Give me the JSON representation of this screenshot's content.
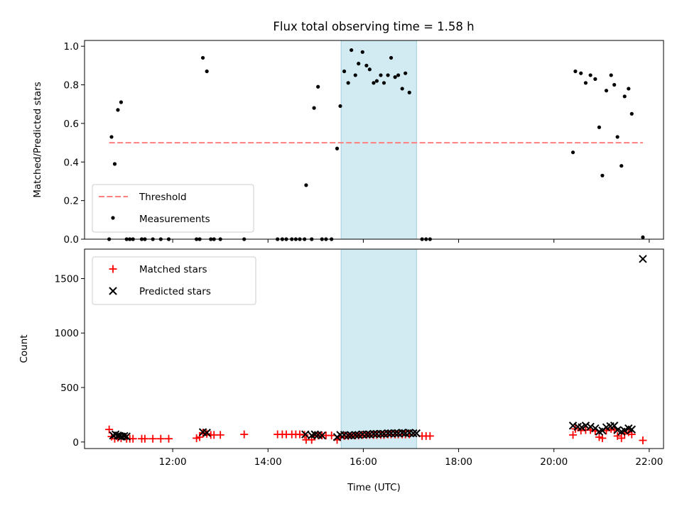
{
  "figure": {
    "title": "Flux total observing time = 1.58 h",
    "shade_color": "#add8e6"
  },
  "chart_data": [
    {
      "type": "scatter",
      "ylabel": "Matched/Predicted stars",
      "xlabel": "",
      "xlim": [
        "10:09",
        "22:18"
      ],
      "ylim": [
        0,
        1.03
      ],
      "yticks": [
        0.0,
        0.2,
        0.4,
        0.6,
        0.8,
        1.0
      ],
      "ytick_labels": [
        "0.0",
        "0.2",
        "0.4",
        "0.6",
        "0.8",
        "1.0"
      ],
      "shaded_interval": [
        "15:32",
        "17:07"
      ],
      "legend": {
        "placement": "lower left",
        "entries": [
          "Threshold",
          "Measurements"
        ]
      },
      "threshold": {
        "name": "Threshold",
        "value": 0.5,
        "x_range": [
          "10:40",
          "21:52"
        ],
        "color": "#ff7f7f",
        "style": "dashed"
      },
      "series": [
        {
          "name": "Measurements",
          "color": "#000000",
          "marker": "dot",
          "points": [
            [
              "10:40",
              0.0
            ],
            [
              "10:43",
              0.53
            ],
            [
              "10:47",
              0.39
            ],
            [
              "10:51",
              0.67
            ],
            [
              "10:55",
              0.71
            ],
            [
              "11:02",
              0.0
            ],
            [
              "11:06",
              0.0
            ],
            [
              "11:10",
              0.0
            ],
            [
              "11:21",
              0.0
            ],
            [
              "11:25",
              0.0
            ],
            [
              "11:35",
              0.0
            ],
            [
              "11:45",
              0.0
            ],
            [
              "11:55",
              0.0
            ],
            [
              "12:30",
              0.0
            ],
            [
              "12:34",
              0.0
            ],
            [
              "12:38",
              0.94
            ],
            [
              "12:43",
              0.87
            ],
            [
              "12:48",
              0.0
            ],
            [
              "12:52",
              0.0
            ],
            [
              "13:00",
              0.0
            ],
            [
              "13:30",
              0.0
            ],
            [
              "14:12",
              0.0
            ],
            [
              "14:18",
              0.0
            ],
            [
              "14:23",
              0.0
            ],
            [
              "14:30",
              0.0
            ],
            [
              "14:35",
              0.0
            ],
            [
              "14:40",
              0.0
            ],
            [
              "14:46",
              0.0
            ],
            [
              "14:48",
              0.28
            ],
            [
              "14:55",
              0.0
            ],
            [
              "14:58",
              0.68
            ],
            [
              "15:03",
              0.79
            ],
            [
              "15:08",
              0.0
            ],
            [
              "15:13",
              0.0
            ],
            [
              "15:20",
              0.0
            ],
            [
              "15:27",
              0.47
            ],
            [
              "15:31",
              0.69
            ],
            [
              "15:36",
              0.87
            ],
            [
              "15:41",
              0.81
            ],
            [
              "15:45",
              0.98
            ],
            [
              "15:50",
              0.85
            ],
            [
              "15:54",
              0.91
            ],
            [
              "15:59",
              0.97
            ],
            [
              "16:04",
              0.9
            ],
            [
              "16:08",
              0.88
            ],
            [
              "16:13",
              0.81
            ],
            [
              "16:17",
              0.82
            ],
            [
              "16:22",
              0.85
            ],
            [
              "16:26",
              0.81
            ],
            [
              "16:31",
              0.85
            ],
            [
              "16:35",
              0.94
            ],
            [
              "16:40",
              0.84
            ],
            [
              "16:44",
              0.85
            ],
            [
              "16:49",
              0.78
            ],
            [
              "16:53",
              0.86
            ],
            [
              "16:58",
              0.76
            ],
            [
              "17:14",
              0.0
            ],
            [
              "17:19",
              0.0
            ],
            [
              "17:24",
              0.0
            ],
            [
              "20:24",
              0.45
            ],
            [
              "20:27",
              0.87
            ],
            [
              "20:34",
              0.86
            ],
            [
              "20:40",
              0.81
            ],
            [
              "20:46",
              0.85
            ],
            [
              "20:52",
              0.83
            ],
            [
              "20:57",
              0.58
            ],
            [
              "21:01",
              0.33
            ],
            [
              "21:06",
              0.77
            ],
            [
              "21:12",
              0.85
            ],
            [
              "21:16",
              0.8
            ],
            [
              "21:20",
              0.53
            ],
            [
              "21:25",
              0.38
            ],
            [
              "21:29",
              0.74
            ],
            [
              "21:34",
              0.78
            ],
            [
              "21:38",
              0.65
            ],
            [
              "21:52",
              0.01
            ]
          ]
        }
      ]
    },
    {
      "type": "scatter",
      "ylabel": "Count",
      "xlabel": "Time (UTC)",
      "xlim": [
        "10:09",
        "22:18"
      ],
      "ylim": [
        -60,
        1770
      ],
      "yticks": [
        0,
        500,
        1000,
        1500
      ],
      "ytick_labels": [
        "0",
        "500",
        "1000",
        "1500"
      ],
      "xticks": [
        "12:00",
        "14:00",
        "16:00",
        "18:00",
        "20:00",
        "22:00"
      ],
      "xtick_labels": [
        "12:00",
        "14:00",
        "16:00",
        "18:00",
        "20:00",
        "22:00"
      ],
      "shaded_interval": [
        "15:32",
        "17:07"
      ],
      "legend": {
        "placement": "upper left",
        "entries": [
          "Matched stars",
          "Predicted stars"
        ]
      },
      "series": [
        {
          "name": "Matched stars",
          "color": "#ff0000",
          "marker": "plus",
          "points": [
            [
              "10:40",
              115
            ],
            [
              "10:43",
              50
            ],
            [
              "10:47",
              30
            ],
            [
              "10:51",
              40
            ],
            [
              "10:55",
              35
            ],
            [
              "11:02",
              30
            ],
            [
              "11:06",
              30
            ],
            [
              "11:10",
              30
            ],
            [
              "11:21",
              30
            ],
            [
              "11:25",
              30
            ],
            [
              "11:35",
              30
            ],
            [
              "11:45",
              30
            ],
            [
              "11:55",
              30
            ],
            [
              "12:30",
              35
            ],
            [
              "12:34",
              45
            ],
            [
              "12:38",
              85
            ],
            [
              "12:43",
              75
            ],
            [
              "12:48",
              65
            ],
            [
              "12:52",
              65
            ],
            [
              "13:00",
              65
            ],
            [
              "13:30",
              70
            ],
            [
              "14:12",
              70
            ],
            [
              "14:18",
              70
            ],
            [
              "14:23",
              70
            ],
            [
              "14:30",
              70
            ],
            [
              "14:35",
              70
            ],
            [
              "14:40",
              70
            ],
            [
              "14:46",
              65
            ],
            [
              "14:48",
              20
            ],
            [
              "14:55",
              20
            ],
            [
              "14:58",
              55
            ],
            [
              "15:03",
              60
            ],
            [
              "15:08",
              60
            ],
            [
              "15:13",
              60
            ],
            [
              "15:20",
              60
            ],
            [
              "15:27",
              20
            ],
            [
              "15:31",
              45
            ],
            [
              "15:36",
              55
            ],
            [
              "15:41",
              55
            ],
            [
              "15:45",
              60
            ],
            [
              "15:50",
              60
            ],
            [
              "15:54",
              60
            ],
            [
              "15:59",
              65
            ],
            [
              "16:04",
              65
            ],
            [
              "16:08",
              65
            ],
            [
              "16:13",
              65
            ],
            [
              "16:17",
              65
            ],
            [
              "16:22",
              65
            ],
            [
              "16:26",
              65
            ],
            [
              "16:31",
              70
            ],
            [
              "16:35",
              70
            ],
            [
              "16:40",
              70
            ],
            [
              "16:44",
              70
            ],
            [
              "16:49",
              70
            ],
            [
              "16:53",
              70
            ],
            [
              "16:58",
              70
            ],
            [
              "17:14",
              55
            ],
            [
              "17:19",
              55
            ],
            [
              "17:24",
              55
            ],
            [
              "20:24",
              65
            ],
            [
              "20:27",
              120
            ],
            [
              "20:34",
              105
            ],
            [
              "20:40",
              110
            ],
            [
              "20:46",
              110
            ],
            [
              "20:52",
              100
            ],
            [
              "20:57",
              45
            ],
            [
              "21:01",
              35
            ],
            [
              "21:06",
              105
            ],
            [
              "21:12",
              120
            ],
            [
              "21:16",
              110
            ],
            [
              "21:20",
              55
            ],
            [
              "21:25",
              35
            ],
            [
              "21:29",
              75
            ],
            [
              "21:34",
              90
            ],
            [
              "21:38",
              70
            ],
            [
              "21:52",
              15
            ]
          ]
        },
        {
          "name": "Predicted stars",
          "color": "#000000",
          "marker": "x",
          "points": [
            [
              "10:45",
              60
            ],
            [
              "10:48",
              70
            ],
            [
              "10:51",
              60
            ],
            [
              "10:53",
              55
            ],
            [
              "10:56",
              50
            ],
            [
              "10:59",
              55
            ],
            [
              "11:02",
              50
            ],
            [
              "12:38",
              90
            ],
            [
              "12:43",
              85
            ],
            [
              "14:47",
              70
            ],
            [
              "14:55",
              60
            ],
            [
              "14:59",
              70
            ],
            [
              "15:03",
              65
            ],
            [
              "15:08",
              60
            ],
            [
              "15:27",
              45
            ],
            [
              "15:31",
              65
            ],
            [
              "15:36",
              65
            ],
            [
              "15:41",
              60
            ],
            [
              "15:45",
              60
            ],
            [
              "15:50",
              65
            ],
            [
              "15:54",
              65
            ],
            [
              "15:59",
              70
            ],
            [
              "16:04",
              70
            ],
            [
              "16:08",
              70
            ],
            [
              "16:13",
              75
            ],
            [
              "16:17",
              75
            ],
            [
              "16:22",
              75
            ],
            [
              "16:26",
              75
            ],
            [
              "16:31",
              80
            ],
            [
              "16:35",
              80
            ],
            [
              "16:40",
              80
            ],
            [
              "16:44",
              80
            ],
            [
              "16:49",
              85
            ],
            [
              "16:53",
              80
            ],
            [
              "16:58",
              85
            ],
            [
              "17:03",
              80
            ],
            [
              "17:07",
              80
            ],
            [
              "20:24",
              150
            ],
            [
              "20:30",
              140
            ],
            [
              "20:35",
              135
            ],
            [
              "20:40",
              150
            ],
            [
              "20:46",
              140
            ],
            [
              "20:52",
              125
            ],
            [
              "20:57",
              95
            ],
            [
              "21:01",
              105
            ],
            [
              "21:06",
              135
            ],
            [
              "21:11",
              145
            ],
            [
              "21:16",
              150
            ],
            [
              "21:20",
              110
            ],
            [
              "21:25",
              95
            ],
            [
              "21:29",
              105
            ],
            [
              "21:34",
              125
            ],
            [
              "21:38",
              115
            ],
            [
              "21:52",
              1680
            ]
          ]
        }
      ]
    }
  ]
}
